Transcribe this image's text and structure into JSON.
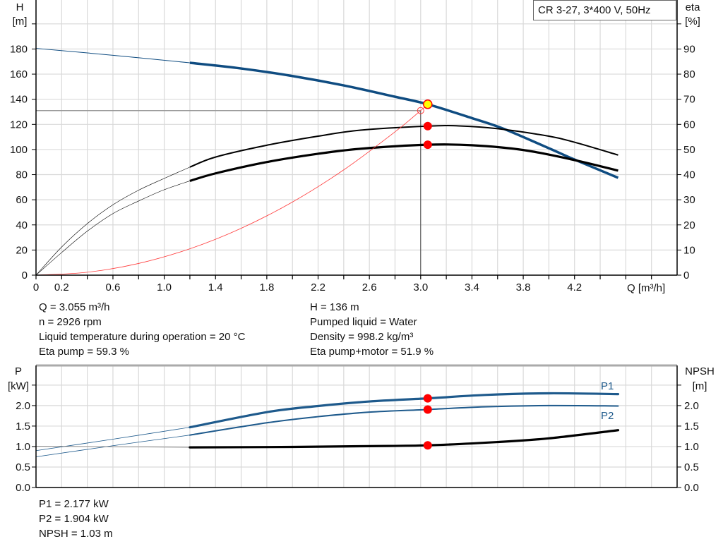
{
  "colors": {
    "head": "#0f4c81",
    "power": "#1e5a8c",
    "efficiency": "#000000",
    "system": "#ff3b3b",
    "marker": "#ff0000",
    "duty_point": "#ffff00",
    "grid": "#d9d9d9"
  },
  "chart_data": [
    {
      "type": "line",
      "legend_box": "CR 3-27, 3*400 V, 50Hz",
      "xlabel": "Q [m³/h]",
      "ylabel_left": [
        "H",
        "[m]"
      ],
      "ylabel_right": [
        "eta",
        "[%]"
      ],
      "xlim": [
        0,
        5.0
      ],
      "ylim_left": [
        0,
        219
      ],
      "ylim_right": [
        0,
        109.5
      ],
      "grid": true,
      "x_tick_labels": [
        "0",
        "0.2",
        "0.6",
        "1.0",
        "1.4",
        "1.8",
        "2.2",
        "2.6",
        "3.0",
        "3.4",
        "3.8",
        "4.2"
      ],
      "x_tick_values": [
        0,
        0.2,
        0.6,
        1.0,
        1.4,
        1.8,
        2.2,
        2.6,
        3.0,
        3.4,
        3.8,
        4.2
      ],
      "y_left_ticks": [
        0,
        20,
        40,
        60,
        80,
        100,
        120,
        140,
        160,
        180
      ],
      "y_right_ticks": [
        0,
        10,
        20,
        30,
        40,
        50,
        60,
        70,
        80,
        90
      ],
      "series": [
        {
          "id": "head",
          "axis": "left",
          "points": [
            [
              0,
              180.5
            ],
            [
              0.6,
              175
            ],
            [
              1.2,
              169
            ],
            [
              1.6,
              164.5
            ],
            [
              2.0,
              158.5
            ],
            [
              2.4,
              151
            ],
            [
              2.8,
              142
            ],
            [
              3.055,
              136
            ],
            [
              3.4,
              125
            ],
            [
              3.65,
              116.4
            ],
            [
              4.0,
              101
            ],
            [
              4.2,
              92
            ],
            [
              4.54,
              77.5
            ]
          ]
        },
        {
          "id": "eta_pump",
          "axis": "right",
          "points": [
            [
              0,
              0
            ],
            [
              0.2,
              11.2
            ],
            [
              0.4,
              20.5
            ],
            [
              0.6,
              28
            ],
            [
              0.8,
              33.8
            ],
            [
              1.0,
              38.5
            ],
            [
              1.2,
              43
            ],
            [
              1.4,
              47
            ],
            [
              1.8,
              51.7
            ],
            [
              2.2,
              55.3
            ],
            [
              2.53,
              57.7
            ],
            [
              3.055,
              59.3
            ],
            [
              3.3,
              59.4
            ],
            [
              3.6,
              58.3
            ],
            [
              4.0,
              55.3
            ],
            [
              4.2,
              52.9
            ],
            [
              4.54,
              47.8
            ]
          ]
        },
        {
          "id": "eta_pump_motor",
          "axis": "right",
          "points": [
            [
              0,
              0
            ],
            [
              0.2,
              9
            ],
            [
              0.4,
              17.5
            ],
            [
              0.6,
              24.5
            ],
            [
              0.8,
              29.5
            ],
            [
              1.0,
              34
            ],
            [
              1.2,
              37.5
            ],
            [
              1.4,
              40.5
            ],
            [
              1.8,
              45
            ],
            [
              2.2,
              48.3
            ],
            [
              2.53,
              50.3
            ],
            [
              3.055,
              51.9
            ],
            [
              3.4,
              51.7
            ],
            [
              3.8,
              49.8
            ],
            [
              4.2,
              45.8
            ],
            [
              4.54,
              41.6
            ]
          ]
        },
        {
          "id": "system_curve",
          "axis": "left",
          "points": [
            [
              0,
              0
            ],
            [
              0.4,
              2.3
            ],
            [
              0.8,
              9.3
            ],
            [
              1.2,
              21
            ],
            [
              1.6,
              37.3
            ],
            [
              2.0,
              58.2
            ],
            [
              2.4,
              83.8
            ],
            [
              2.8,
              114.1
            ],
            [
              3.0,
              131
            ],
            [
              3.055,
              135.8
            ]
          ]
        }
      ],
      "duty_point": {
        "q": 3.055,
        "h": 136
      },
      "requested_point": {
        "q": 3.0,
        "h": 131
      },
      "eta_points": [
        59.3,
        51.9
      ]
    },
    {
      "type": "line",
      "ylabel_left": [
        "P",
        "[kW]"
      ],
      "ylabel_right": [
        "NPSH",
        "[m]"
      ],
      "xlim": [
        0,
        5.0
      ],
      "ylim": [
        0,
        2.98
      ],
      "grid": true,
      "y_ticks": [
        "0.0",
        "0.5",
        "1.0",
        "1.5",
        "2.0"
      ],
      "y_tick_values": [
        0,
        0.5,
        1.0,
        1.5,
        2.0
      ],
      "series": [
        {
          "id": "P1",
          "name": "P1",
          "points": [
            [
              0,
              0.9
            ],
            [
              0.6,
              1.18
            ],
            [
              1.2,
              1.47
            ],
            [
              1.8,
              1.84
            ],
            [
              2.2,
              1.99
            ],
            [
              2.6,
              2.1
            ],
            [
              3.055,
              2.177
            ],
            [
              3.5,
              2.26
            ],
            [
              4.0,
              2.3
            ],
            [
              4.54,
              2.28
            ]
          ]
        },
        {
          "id": "P2",
          "name": "P2",
          "points": [
            [
              0,
              0.75
            ],
            [
              0.6,
              1.02
            ],
            [
              1.2,
              1.28
            ],
            [
              1.8,
              1.58
            ],
            [
              2.2,
              1.73
            ],
            [
              2.6,
              1.84
            ],
            [
              3.055,
              1.904
            ],
            [
              3.5,
              1.97
            ],
            [
              4.0,
              2.0
            ],
            [
              4.54,
              1.99
            ]
          ]
        },
        {
          "id": "NPSH",
          "points": [
            [
              0,
              1.01
            ],
            [
              1.2,
              0.98
            ],
            [
              2.0,
              0.99
            ],
            [
              2.6,
              1.01
            ],
            [
              3.055,
              1.03
            ],
            [
              3.6,
              1.11
            ],
            [
              4.0,
              1.2
            ],
            [
              4.54,
              1.4
            ]
          ]
        }
      ],
      "duty_q": 3.055,
      "duty_values": {
        "P1": 2.177,
        "P2": 1.904,
        "NPSH": 1.03
      }
    }
  ],
  "info_top_left": [
    "Q = 3.055 m³/h",
    "n = 2926 rpm",
    "Liquid temperature during operation = 20 °C",
    "Eta pump = 59.3 %"
  ],
  "info_top_right": [
    "H = 136 m",
    "Pumped liquid = Water",
    "Density = 998.2 kg/m³",
    "Eta pump+motor = 51.9 %"
  ],
  "info_bottom": [
    "P1 = 2.177 kW",
    "P2 = 1.904 kW",
    "NPSH = 1.03 m"
  ]
}
